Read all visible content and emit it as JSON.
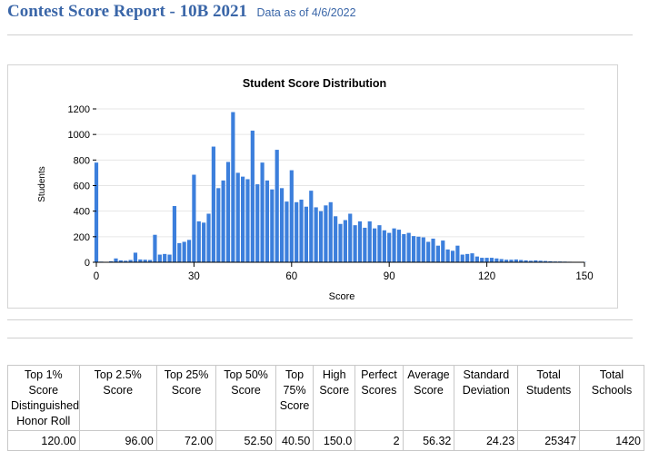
{
  "header": {
    "title": "Contest Score Report -  10B 2021",
    "as_of": "Data as of 4/6/2022"
  },
  "chart_data": {
    "type": "bar",
    "title": "Student Score Distribution",
    "xlabel": "Score",
    "ylabel": "Students",
    "xlim": [
      0,
      150
    ],
    "ylim": [
      0,
      1200
    ],
    "x_ticks": [
      0,
      30,
      60,
      90,
      120,
      150
    ],
    "y_ticks": [
      0,
      200,
      400,
      600,
      800,
      1000,
      1200
    ],
    "grid": true,
    "bar_color": "#3c7fdc",
    "x": [
      0,
      1.5,
      3,
      4.5,
      6,
      7.5,
      9,
      10.5,
      12,
      13.5,
      15,
      16.5,
      18,
      19.5,
      21,
      22.5,
      24,
      25.5,
      27,
      28.5,
      30,
      31.5,
      33,
      34.5,
      36,
      37.5,
      39,
      40.5,
      42,
      43.5,
      45,
      46.5,
      48,
      49.5,
      51,
      52.5,
      54,
      55.5,
      57,
      58.5,
      60,
      61.5,
      63,
      64.5,
      66,
      67.5,
      69,
      70.5,
      72,
      73.5,
      75,
      76.5,
      78,
      79.5,
      81,
      82.5,
      84,
      85.5,
      87,
      88.5,
      90,
      91.5,
      93,
      94.5,
      96,
      97.5,
      99,
      100.5,
      102,
      103.5,
      105,
      106.5,
      108,
      109.5,
      111,
      112.5,
      114,
      115.5,
      117,
      118.5,
      120,
      121.5,
      123,
      124.5,
      126,
      127.5,
      129,
      130.5,
      132,
      133.5,
      135,
      136.5,
      138,
      139.5,
      141,
      142.5,
      144,
      145.5,
      147,
      148.5,
      150
    ],
    "values": [
      780,
      5,
      3,
      8,
      30,
      15,
      12,
      18,
      75,
      22,
      20,
      18,
      215,
      60,
      65,
      60,
      440,
      150,
      160,
      175,
      685,
      320,
      310,
      380,
      905,
      580,
      640,
      785,
      1175,
      700,
      670,
      650,
      1030,
      610,
      780,
      640,
      570,
      880,
      580,
      475,
      720,
      470,
      490,
      435,
      560,
      430,
      400,
      445,
      470,
      360,
      300,
      330,
      380,
      290,
      320,
      270,
      320,
      265,
      290,
      250,
      230,
      265,
      255,
      220,
      230,
      205,
      200,
      195,
      160,
      185,
      130,
      170,
      100,
      90,
      130,
      60,
      65,
      70,
      45,
      35,
      35,
      35,
      30,
      25,
      20,
      20,
      22,
      18,
      15,
      12,
      15,
      12,
      10,
      8,
      6,
      6,
      5,
      4,
      3,
      3,
      2
    ]
  },
  "stats_table": {
    "headers": [
      "Top 1% Score Distinguished Honor Roll",
      "Top 2.5% Score",
      "Top 25% Score",
      "Top 50% Score",
      "Top 75% Score",
      "High Score",
      "Perfect Scores",
      "Average Score",
      "Standard Deviation",
      "Total Students",
      "Total Schools"
    ],
    "values": [
      "120.00",
      "96.00",
      "72.00",
      "52.50",
      "40.50",
      "150.0",
      "2",
      "56.32",
      "24.23",
      "25347",
      "1420"
    ]
  }
}
